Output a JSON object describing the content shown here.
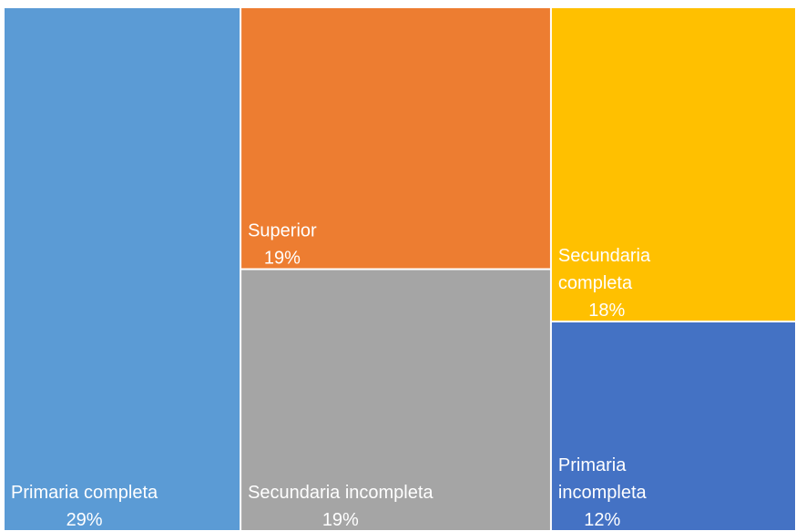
{
  "chart_data": {
    "type": "treemap",
    "categories": [
      "Primaria completa",
      "Superior",
      "Secundaria incompleta",
      "Secundaria completa",
      "Primaria incompleta"
    ],
    "values": [
      29,
      19,
      19,
      18,
      12
    ],
    "value_labels": [
      "29%",
      "19%",
      "19%",
      "18%",
      "12%"
    ],
    "colors": [
      "#5b9bd5",
      "#ed7d31",
      "#a5a5a5",
      "#ffc000",
      "#4472c4"
    ]
  }
}
